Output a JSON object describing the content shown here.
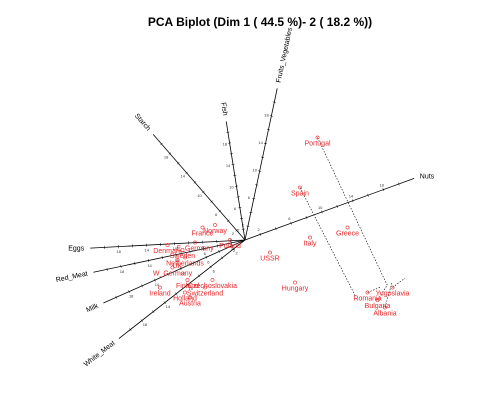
{
  "chart_data": {
    "type": "scatter",
    "subtype": "pca-biplot",
    "title": "PCA Biplot (Dim 1 ( 44.5 %)- 2 ( 18.2 %))",
    "xlabel": "",
    "ylabel": "",
    "xlim": [
      -3.2,
      3.8
    ],
    "ylim": [
      -2.2,
      3.0
    ],
    "grid": false,
    "colors": {
      "points": "#e8282b",
      "axes": "#000000",
      "guides": "#000000"
    },
    "variables": [
      {
        "name": "Fruits_Vegetables",
        "angle": 78,
        "length": 3.1
      },
      {
        "name": "Nuts",
        "angle": 20,
        "length": 3.6
      },
      {
        "name": "Fish",
        "angle": 99,
        "length": 2.4
      },
      {
        "name": "Starch",
        "angle": 131,
        "length": 2.8
      },
      {
        "name": "Eggs",
        "angle": 183,
        "length": 3.1
      },
      {
        "name": "Red_Meat",
        "angle": 192,
        "length": 3.1
      },
      {
        "name": "Milk",
        "angle": 204,
        "length": 3.1
      },
      {
        "name": "White_Meat",
        "angle": 218,
        "length": 3.2
      }
    ],
    "tick_values": [
      "2",
      "4",
      "6",
      "8",
      "10",
      "12",
      "14",
      "16",
      "18",
      "20"
    ],
    "countries": [
      {
        "name": "Portugal",
        "x": 1.45,
        "y": 2.05
      },
      {
        "name": "Spain",
        "x": 1.1,
        "y": 1.05
      },
      {
        "name": "Greece",
        "x": 2.05,
        "y": 0.25
      },
      {
        "name": "Italy",
        "x": 1.3,
        "y": 0.05
      },
      {
        "name": "USSR",
        "x": 0.5,
        "y": -0.25
      },
      {
        "name": "Hungary",
        "x": 1.0,
        "y": -0.85
      },
      {
        "name": "Yugoslavia",
        "x": 2.95,
        "y": -0.95
      },
      {
        "name": "Romania",
        "x": 2.45,
        "y": -1.05
      },
      {
        "name": "Bulgaria",
        "x": 2.65,
        "y": -1.2
      },
      {
        "name": "Albania",
        "x": 2.8,
        "y": -1.35
      },
      {
        "name": "France",
        "x": -0.85,
        "y": 0.25
      },
      {
        "name": "Norway",
        "x": -0.6,
        "y": 0.3
      },
      {
        "name": "Poland",
        "x": -0.3,
        "y": 0.0
      },
      {
        "name": "E_Germany",
        "x": -1.0,
        "y": -0.05
      },
      {
        "name": "Denmark",
        "x": -1.55,
        "y": -0.1
      },
      {
        "name": "Sweden",
        "x": -1.25,
        "y": -0.2
      },
      {
        "name": "UK",
        "x": -1.35,
        "y": -0.4
      },
      {
        "name": "W_Germany",
        "x": -1.45,
        "y": -0.55
      },
      {
        "name": "Netherlands",
        "x": -1.2,
        "y": -0.35
      },
      {
        "name": "Finland",
        "x": -1.15,
        "y": -0.8
      },
      {
        "name": "Czechoslovakia",
        "x": -0.65,
        "y": -0.8
      },
      {
        "name": "Switzerland",
        "x": -0.8,
        "y": -0.95
      },
      {
        "name": "Ireland",
        "x": -1.7,
        "y": -0.95
      },
      {
        "name": "Holland",
        "x": -1.2,
        "y": -1.05
      },
      {
        "name": "Austria",
        "x": -1.1,
        "y": -1.15
      }
    ]
  }
}
